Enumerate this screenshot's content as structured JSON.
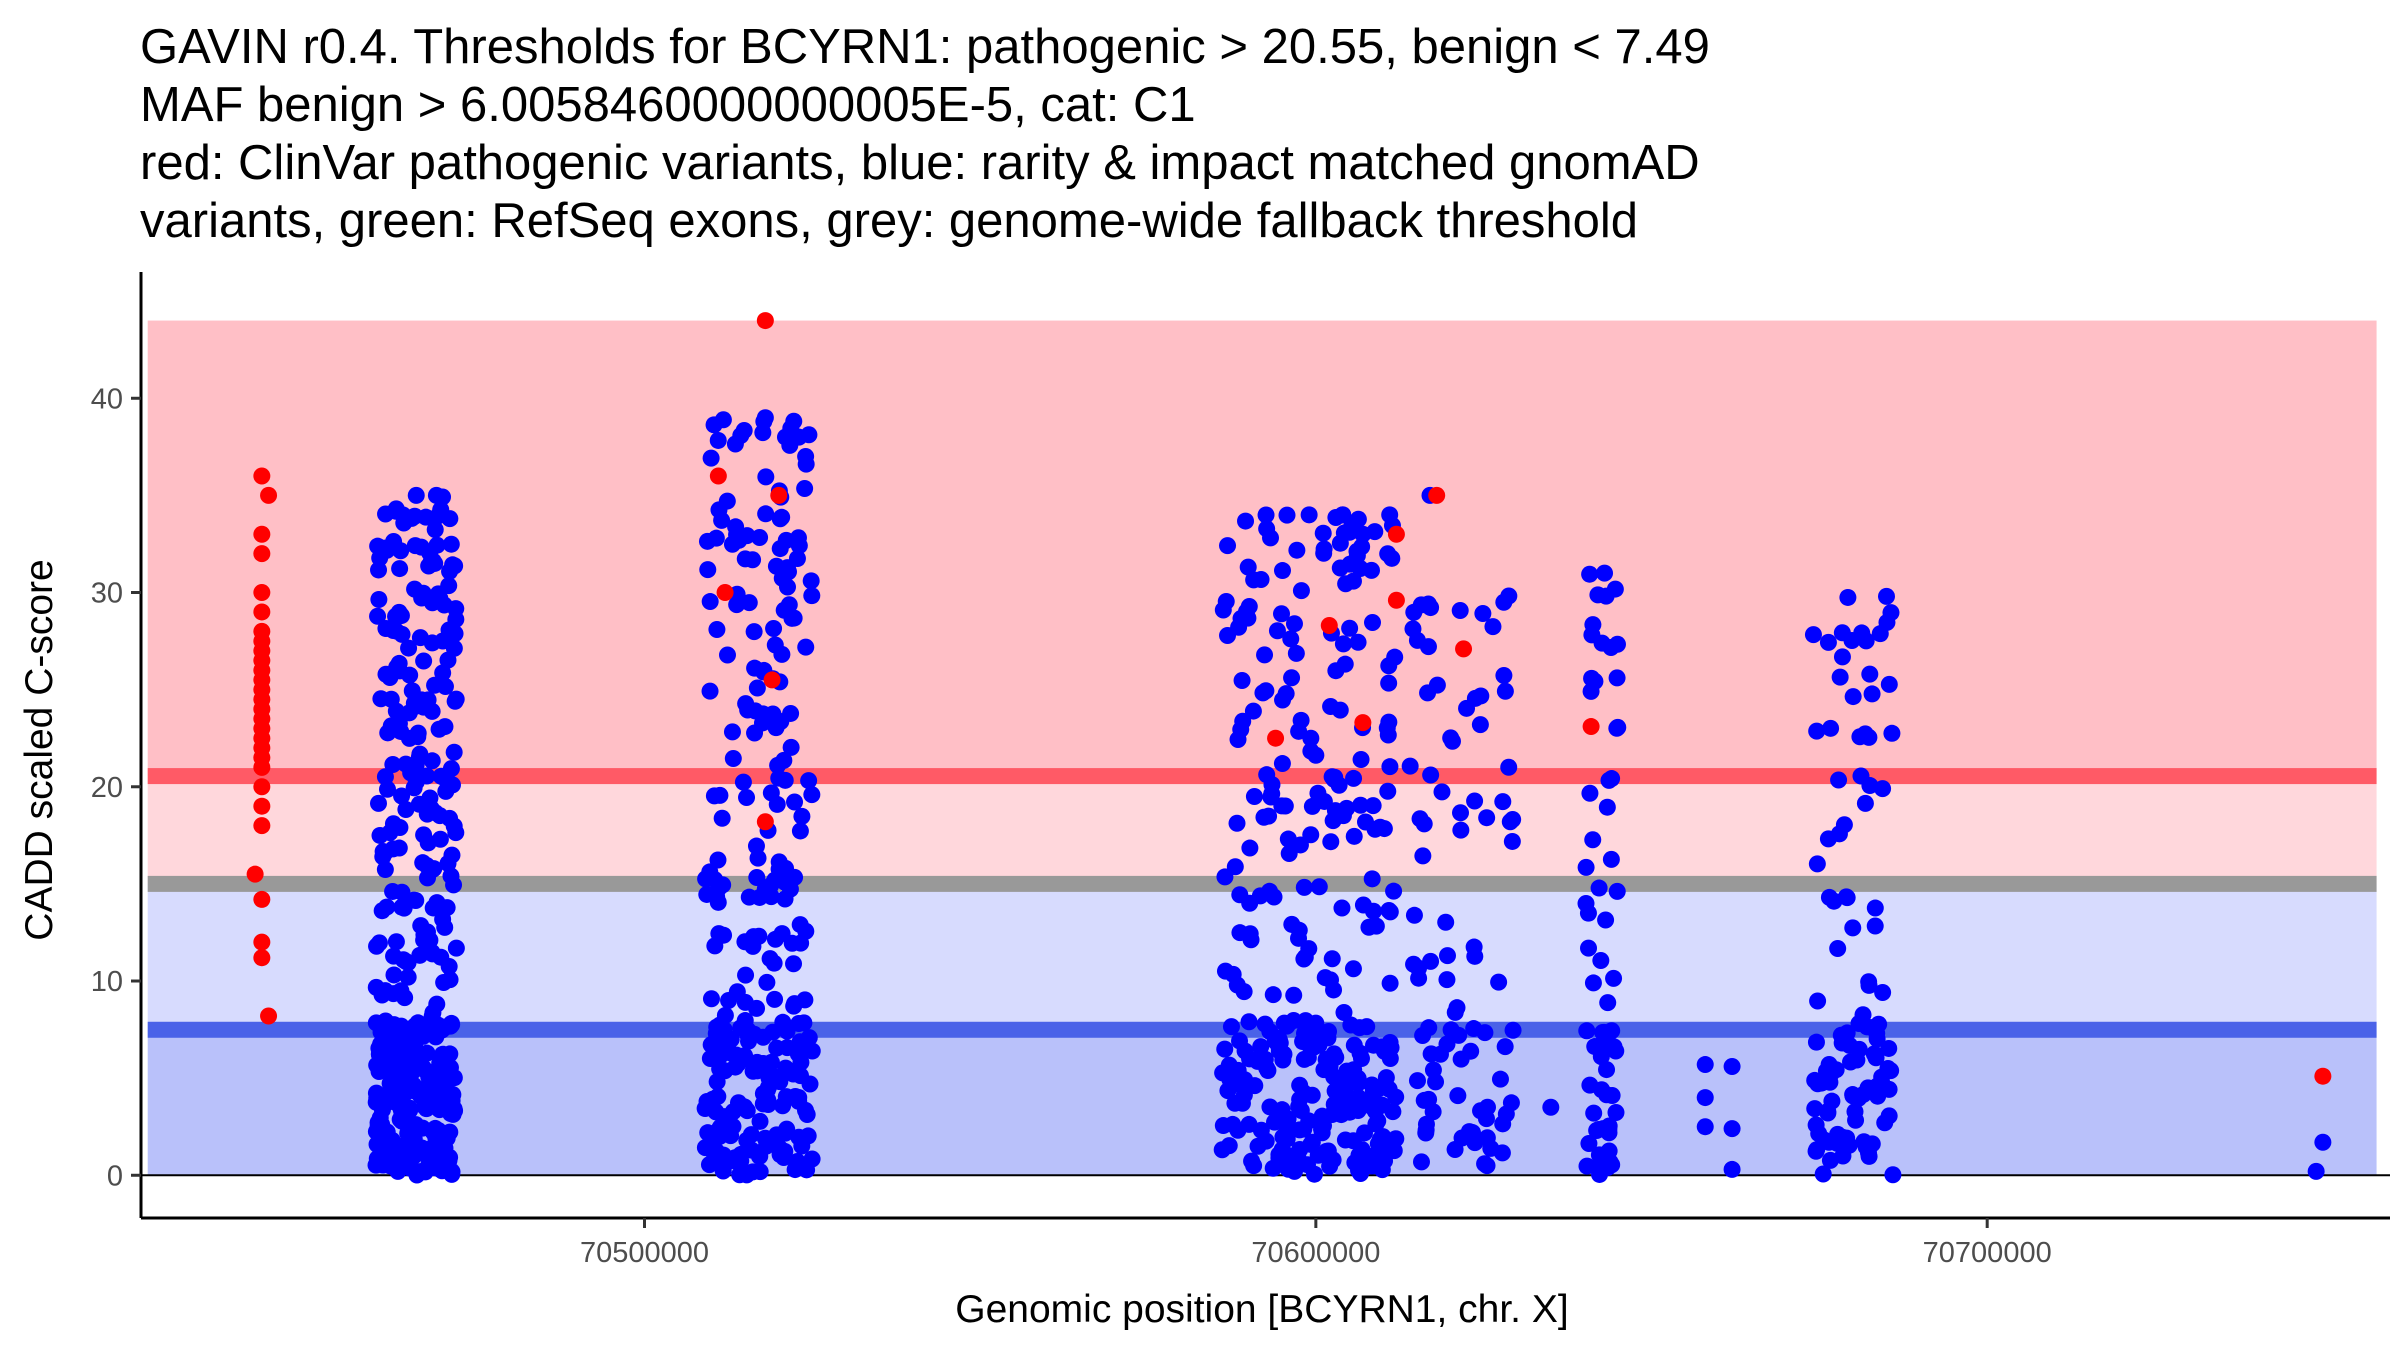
{
  "title_lines": [
    "GAVIN r0.4. Thresholds for BCYRN1: pathogenic > 20.55, benign < 7.49",
    "MAF benign > 6.0058460000000005E-5, cat: C1",
    "red: ClinVar pathogenic variants, blue: rarity & impact matched gnomAD",
    "variants, green: RefSeq exons, grey: genome-wide fallback threshold"
  ],
  "colors": {
    "pathogenic_region": "#ffbfc6",
    "pathogenic_line": "#ff5a66",
    "middle_upper_region": "#ffd7dc",
    "fallback_line": "#999999",
    "middle_lower_region": "#d7dbfe",
    "benign_region": "#b9c1fa",
    "benign_line": "#4a62e8",
    "clinvar_point": "#ff0000",
    "gnomad_point": "#0000ff",
    "axis": "#000000"
  },
  "chart_data": {
    "type": "scatter",
    "title": "GAVIN r0.4. Thresholds for BCYRN1: pathogenic > 20.55, benign < 7.49",
    "xlabel": "Genomic position [BCYRN1, chr. X]",
    "ylabel": "CADD scaled C-score",
    "xlim": [
      70425000,
      70760000
    ],
    "ylim": [
      -2.2,
      46.5
    ],
    "x_ticks": [
      70500000,
      70600000,
      70700000
    ],
    "x_tick_labels": [
      "70500000",
      "70600000",
      "70700000"
    ],
    "y_ticks": [
      0,
      10,
      20,
      30,
      40
    ],
    "y_tick_labels": [
      "0",
      "10",
      "20",
      "30",
      "40"
    ],
    "thresholds": {
      "pathogenic": 20.55,
      "benign": 7.49,
      "fallback": 15.0,
      "shading_top": 44,
      "shading_x_range": [
        70426000,
        70758000
      ]
    },
    "series": [
      {
        "name": "rarity & impact matched gnomAD variants",
        "color": "blue",
        "clusters": [
          {
            "x_min": 70460000,
            "x_max": 70472000,
            "count": 430,
            "y_max": 35,
            "low_bias": 0.45
          },
          {
            "x_min": 70509000,
            "x_max": 70525000,
            "count": 280,
            "y_max": 39,
            "low_bias": 0.35
          },
          {
            "x_min": 70586000,
            "x_max": 70612000,
            "count": 340,
            "y_max": 34,
            "low_bias": 0.4
          },
          {
            "x_min": 70614000,
            "x_max": 70630000,
            "count": 90,
            "y_max": 30,
            "low_bias": 0.35
          },
          {
            "x_min": 70640000,
            "x_max": 70645000,
            "count": 65,
            "y_max": 31,
            "low_bias": 0.35
          },
          {
            "x_min": 70674000,
            "x_max": 70686000,
            "count": 110,
            "y_max": 30,
            "low_bias": 0.35
          }
        ],
        "points": [
          [
            70518000,
            39
          ],
          [
            70521000,
            38
          ],
          [
            70523000,
            38
          ],
          [
            70524000,
            37
          ],
          [
            70466000,
            35
          ],
          [
            70469000,
            35
          ],
          [
            70464000,
            34
          ],
          [
            70599000,
            34
          ],
          [
            70604000,
            34
          ],
          [
            70611000,
            34
          ],
          [
            70617000,
            35
          ],
          [
            70604000,
            34
          ],
          [
            70607000,
            33
          ],
          [
            70628000,
            29.5
          ],
          [
            70643000,
            31
          ],
          [
            70685000,
            29.8
          ],
          [
            70635000,
            3.5
          ],
          [
            70658000,
            5.7
          ],
          [
            70658000,
            4.0
          ],
          [
            70658000,
            2.5
          ],
          [
            70662000,
            0.3
          ],
          [
            70662000,
            2.4
          ],
          [
            70662000,
            5.6
          ],
          [
            70749000,
            0.2
          ],
          [
            70750000,
            1.7
          ]
        ]
      },
      {
        "name": "ClinVar pathogenic variants",
        "color": "red",
        "points": [
          [
            70443000,
            36
          ],
          [
            70444000,
            35
          ],
          [
            70443000,
            33
          ],
          [
            70443000,
            32
          ],
          [
            70443000,
            30
          ],
          [
            70443000,
            29
          ],
          [
            70443000,
            28
          ],
          [
            70443000,
            27.5
          ],
          [
            70443000,
            27
          ],
          [
            70443000,
            26.5
          ],
          [
            70443000,
            26
          ],
          [
            70443000,
            25.5
          ],
          [
            70443000,
            25
          ],
          [
            70443000,
            24.5
          ],
          [
            70443000,
            24
          ],
          [
            70443000,
            23.5
          ],
          [
            70443000,
            23
          ],
          [
            70443000,
            22.5
          ],
          [
            70443000,
            22
          ],
          [
            70443000,
            21.5
          ],
          [
            70443000,
            21
          ],
          [
            70443000,
            20
          ],
          [
            70443000,
            19
          ],
          [
            70443000,
            18
          ],
          [
            70442000,
            15.5
          ],
          [
            70443000,
            14.2
          ],
          [
            70443000,
            12
          ],
          [
            70443000,
            11.2
          ],
          [
            70444000,
            8.2
          ],
          [
            70511000,
            36
          ],
          [
            70512000,
            30
          ],
          [
            70518000,
            44
          ],
          [
            70520000,
            35
          ],
          [
            70519000,
            25.5
          ],
          [
            70518000,
            18.2
          ],
          [
            70594000,
            22.5
          ],
          [
            70602000,
            28.3
          ],
          [
            70607000,
            23.3
          ],
          [
            70612000,
            33
          ],
          [
            70612000,
            29.6
          ],
          [
            70618000,
            35
          ],
          [
            70622000,
            27.1
          ],
          [
            70641000,
            23.1
          ],
          [
            70750000,
            5.1
          ]
        ]
      }
    ]
  }
}
